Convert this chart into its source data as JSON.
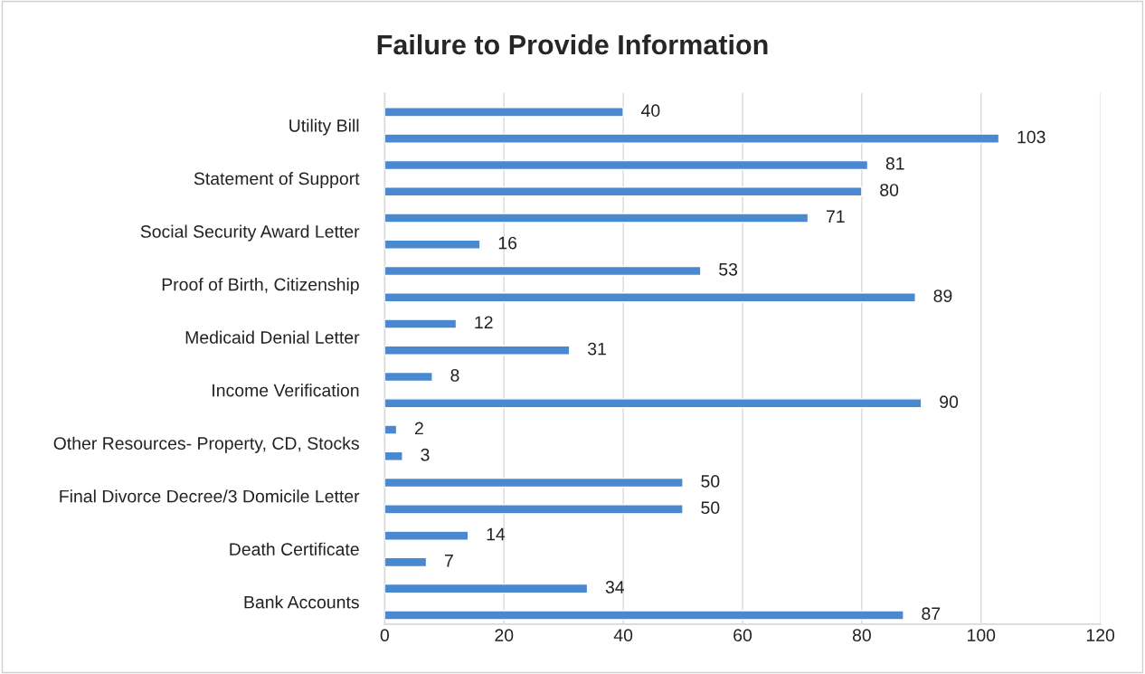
{
  "chart_data": {
    "type": "bar",
    "orientation": "horizontal",
    "title": "Failure to Provide Information",
    "categories": [
      "Utility Bill",
      "Statement of Support",
      "Social Security Award Letter",
      "Proof of Birth, Citizenship",
      "Medicaid Denial Letter",
      "Income Verification",
      "Other Resources- Property, CD, Stocks",
      "Final Divorce Decree/3 Domicile Letter",
      "Death Certificate",
      "Bank Accounts"
    ],
    "series": [
      {
        "color": "#4a89d0",
        "values": [
          40,
          81,
          71,
          53,
          12,
          8,
          2,
          50,
          14,
          34
        ]
      },
      {
        "color": "#4a89d0",
        "values": [
          103,
          80,
          16,
          89,
          31,
          90,
          3,
          50,
          7,
          87
        ]
      }
    ],
    "xlim": [
      0,
      120
    ],
    "xticks": [
      0,
      20,
      40,
      60,
      80,
      100,
      120
    ],
    "grid": "x",
    "data_labels": true
  }
}
